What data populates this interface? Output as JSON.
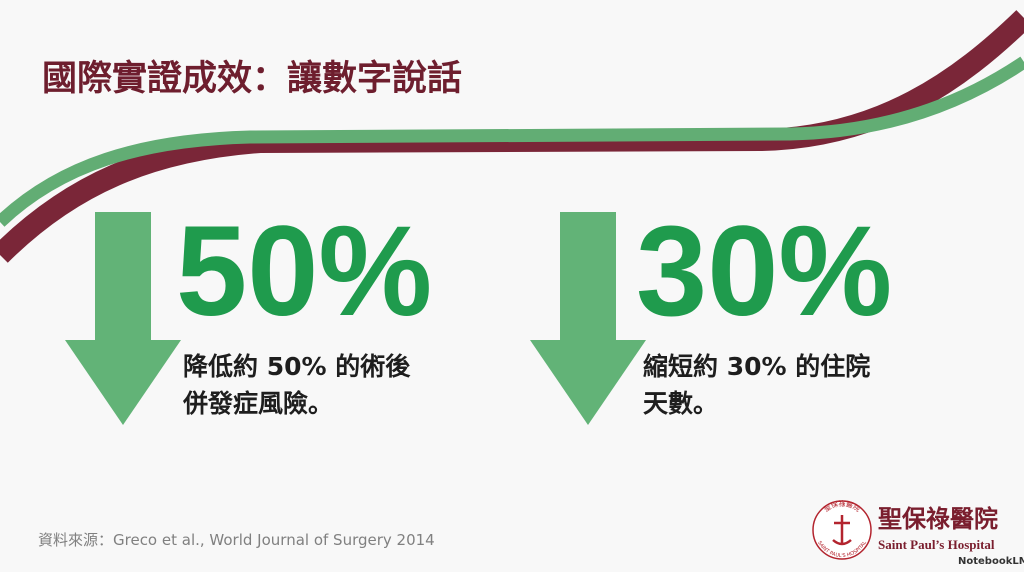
{
  "title": "國際實證成效：讓數字說話",
  "stats": [
    {
      "value": "50%",
      "lines": [
        "降低約 50% 的術後",
        "併發症風險。"
      ]
    },
    {
      "value": "30%",
      "lines": [
        "縮短約 30% 的住院",
        "天數。"
      ]
    }
  ],
  "source": "資料來源：Greco et al., World Journal of Surgery 2014",
  "logo": {
    "emblem_top": "聖保祿醫院",
    "emblem_bottom": "SAINT PAUL'S HOSPITAL",
    "name": "聖保祿醫院",
    "english": "Saint Paul’s Hospital"
  },
  "watermark": "NotebookLM"
}
